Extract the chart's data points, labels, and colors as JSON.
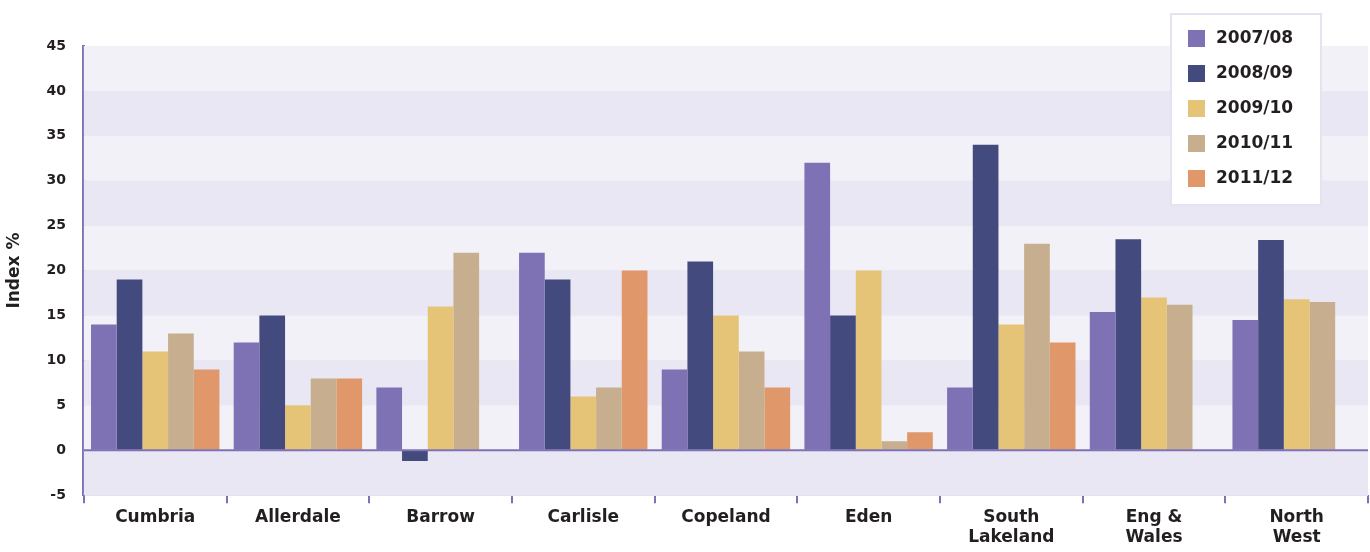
{
  "chart_data": {
    "type": "bar",
    "ylabel": "Index %",
    "categories": [
      "Cumbria",
      "Allerdale",
      "Barrow",
      "Carlisle",
      "Copeland",
      "Eden",
      "South Lakeland",
      "Eng & Wales",
      "North West"
    ],
    "series": [
      {
        "name": "2007/08",
        "color": "#7e72b5",
        "values": [
          14,
          12,
          7,
          22,
          9,
          32,
          7,
          15.4,
          14.5
        ]
      },
      {
        "name": "2008/09",
        "color": "#434a7e",
        "values": [
          19,
          15,
          -1.2,
          19,
          21,
          15,
          34,
          23.5,
          23.4
        ]
      },
      {
        "name": "2009/10",
        "color": "#e6c477",
        "values": [
          11,
          5,
          16,
          6,
          15,
          20,
          14,
          17,
          16.8
        ]
      },
      {
        "name": "2010/11",
        "color": "#c6ae8e",
        "values": [
          13,
          8,
          22,
          7,
          11,
          1,
          23,
          16.2,
          16.5
        ]
      },
      {
        "name": "2011/12",
        "color": "#e0976a",
        "values": [
          9,
          8,
          null,
          20,
          7,
          2,
          12,
          null,
          null
        ]
      }
    ],
    "ylim": [
      -5,
      45
    ],
    "yticks": [
      -5,
      0,
      5,
      10,
      15,
      20,
      25,
      30,
      35,
      40,
      45
    ],
    "ref_lines": [
      {
        "axis": "y",
        "value": 0,
        "color": "#7e72b5"
      }
    ],
    "grid": true,
    "legend": "top right"
  }
}
